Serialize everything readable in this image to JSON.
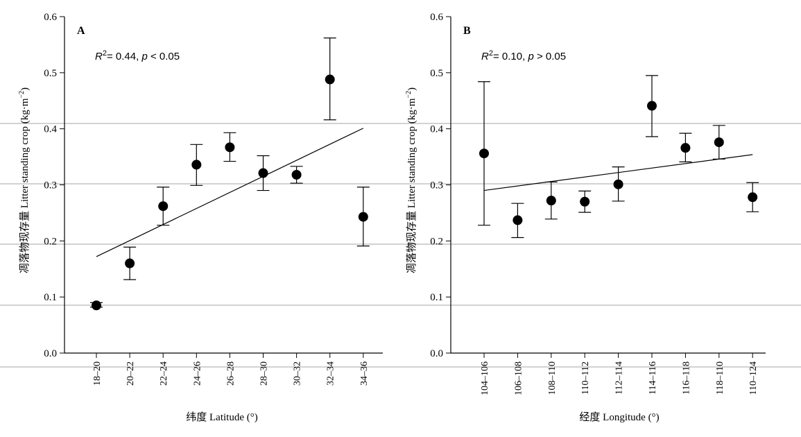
{
  "chart_data": [
    {
      "type": "scatter",
      "panel_label": "A",
      "annotation": {
        "r_label": "R",
        "r_sup": "2",
        "text": "= 0.44, ",
        "p_label": "p",
        "p_text": " < 0.05"
      },
      "ylabel_cn": "凋落物现存量",
      "ylabel_en": "Litter standing crop (kg·m",
      "ylabel_sup": "−2",
      "ylabel_close": ")",
      "xlabel_cn": "纬度",
      "xlabel_en": "Latitude (°)",
      "ylim": [
        0,
        0.6
      ],
      "yticks": [
        "0.0",
        "0.1",
        "0.2",
        "0.3",
        "0.4",
        "0.5",
        "0.6"
      ],
      "categories": [
        "18–20",
        "20–22",
        "22–24",
        "24–26",
        "26–28",
        "28–30",
        "30–32",
        "32–34",
        "34–36"
      ],
      "values": [
        0.085,
        0.16,
        0.262,
        0.336,
        0.367,
        0.321,
        0.318,
        0.488,
        0.243
      ],
      "error_low": [
        0.082,
        0.131,
        0.228,
        0.299,
        0.342,
        0.29,
        0.303,
        0.416,
        0.191
      ],
      "error_high": [
        0.09,
        0.189,
        0.296,
        0.372,
        0.393,
        0.352,
        0.333,
        0.562,
        0.296
      ],
      "trendline": {
        "start": 0.172,
        "end": 0.401
      }
    },
    {
      "type": "scatter",
      "panel_label": "B",
      "annotation": {
        "r_label": "R",
        "r_sup": "2",
        "text": "= 0.10, ",
        "p_label": "p",
        "p_text": " > 0.05"
      },
      "ylabel_cn": "凋落物现存量",
      "ylabel_en": "Litter standing crop (kg·m",
      "ylabel_sup": "−2",
      "ylabel_close": ")",
      "xlabel_cn": "经度",
      "xlabel_en": "Longitude (°)",
      "ylim": [
        0,
        0.6
      ],
      "yticks": [
        "0.0",
        "0.1",
        "0.2",
        "0.3",
        "0.4",
        "0.5",
        "0.6"
      ],
      "categories": [
        "104–106",
        "106–108",
        "108–110",
        "110–112",
        "112–114",
        "114–116",
        "116–118",
        "118–110",
        "110–124"
      ],
      "values": [
        0.356,
        0.237,
        0.272,
        0.27,
        0.301,
        0.441,
        0.366,
        0.376,
        0.278
      ],
      "error_low": [
        0.228,
        0.206,
        0.239,
        0.251,
        0.271,
        0.386,
        0.341,
        0.346,
        0.252
      ],
      "error_high": [
        0.484,
        0.267,
        0.305,
        0.289,
        0.332,
        0.495,
        0.392,
        0.406,
        0.304
      ],
      "trendline": {
        "start": 0.29,
        "end": 0.354
      }
    }
  ]
}
